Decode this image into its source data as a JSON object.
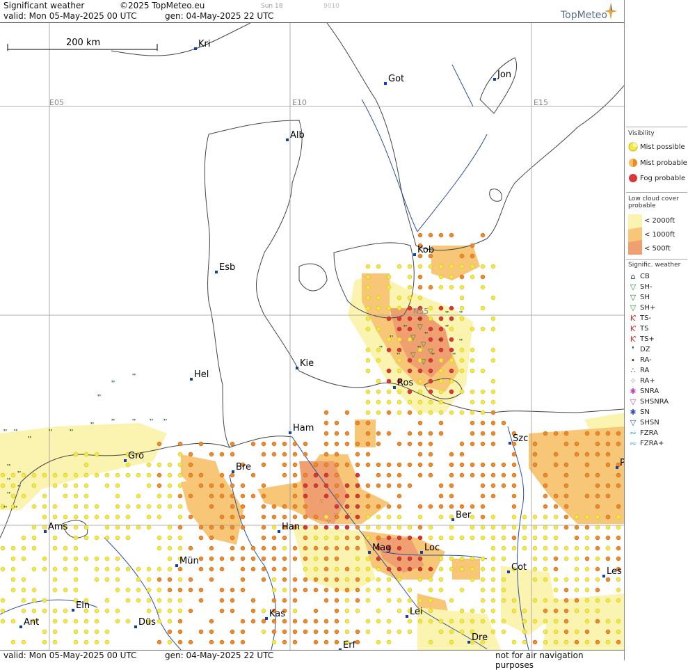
{
  "header": {
    "title": "Significant weather",
    "copyright": "©2025 TopMeteo.eu",
    "sun": "Sun 18",
    "code": "9010",
    "valid": "valid:  Mon  05-May-2025  00 UTC",
    "gen": "gen: 04-May-2025 22 UTC",
    "brand": "TopMeteo"
  },
  "footer": {
    "valid": "valid:  Mon  05-May-2025  00 UTC",
    "gen": "gen: 04-May-2025 22 UTC",
    "disclaimer": "not for air navigation purposes"
  },
  "map": {
    "scale_label": "200 km",
    "grid_labels": [
      "E05",
      "E10",
      "E15",
      "N55"
    ],
    "cities": [
      "Kri",
      "Got",
      "Jon",
      "Alb",
      "Kob",
      "Esb",
      "Kie",
      "Hel",
      "Ros",
      "Ham",
      "Szc",
      "Gro",
      "Bre",
      "P",
      "Ams",
      "Han",
      "Ber",
      "Mag",
      "Loc",
      "Mün",
      "Cot",
      "Les",
      "Ein",
      "Kas",
      "Lei",
      "Ant",
      "Düs",
      "Dre",
      "Erf"
    ]
  },
  "legend": {
    "visibility_title": "Visibility",
    "mist_possible": "Mist possible",
    "mist_probable": "Mist probable",
    "fog_probable": "Fog probable",
    "low_cloud_title": "Low cloud cover probable",
    "lc_2000": "< 2000ft",
    "lc_1000": "< 1000ft",
    "lc_500": "<   500ft",
    "signif_title": "Signific. weather",
    "items": [
      "CB",
      "SH-",
      "SH",
      "SH+",
      "TS-",
      "TS",
      "TS+",
      "DZ",
      "RA-",
      "RA",
      "RA+",
      "SNRA",
      "SHSNRA",
      "SN",
      "SHSN",
      "FZRA",
      "FZRA+"
    ],
    "colors": {
      "mist_possible": "#f2e84a",
      "mist_probable": "#f08a28",
      "fog_probable": "#d83838",
      "cloud_2000": "#fbf3b0",
      "cloud_1000": "#f7c777",
      "cloud_500": "#f0a070"
    }
  }
}
